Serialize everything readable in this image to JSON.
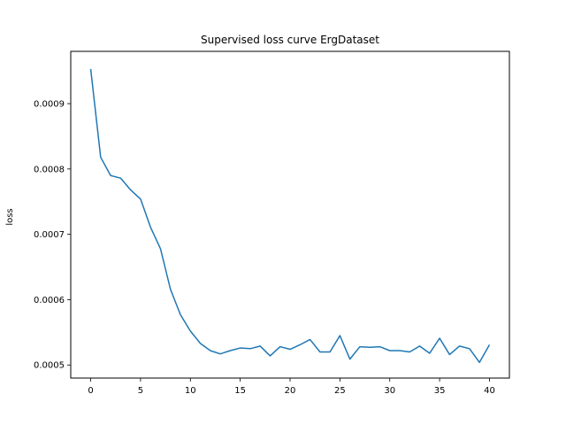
{
  "chart_data": {
    "type": "line",
    "title": "Supervised loss curve ErgDataset",
    "xlabel": "",
    "ylabel": "loss",
    "xlim": [
      -2,
      42
    ],
    "ylim": [
      0.00048,
      0.00098
    ],
    "xticks": [
      0,
      5,
      10,
      15,
      20,
      25,
      30,
      35,
      40
    ],
    "xtick_labels": [
      "0",
      "5",
      "10",
      "15",
      "20",
      "25",
      "30",
      "35",
      "40"
    ],
    "yticks": [
      0.0005,
      0.0006,
      0.0007,
      0.0008,
      0.0009
    ],
    "ytick_labels": [
      "0.0005",
      "0.0006",
      "0.0007",
      "0.0008",
      "0.0009"
    ],
    "grid": false,
    "colors": {
      "line": "#1f77b4"
    },
    "series": [
      {
        "x": [
          0,
          1,
          2,
          3,
          4,
          5,
          6,
          7,
          8,
          9,
          10,
          11,
          12,
          13,
          14,
          15,
          16,
          17,
          18,
          19,
          20,
          21,
          22,
          23,
          24,
          25,
          26,
          27,
          28,
          29,
          30,
          31,
          32,
          33,
          34,
          35,
          36,
          37,
          38,
          39,
          40
        ],
        "values": [
          0.000953,
          0.000818,
          0.00079,
          0.000786,
          0.000768,
          0.000754,
          0.000711,
          0.000678,
          0.000616,
          0.000577,
          0.000552,
          0.000533,
          0.000522,
          0.000517,
          0.000522,
          0.000526,
          0.000525,
          0.000529,
          0.000514,
          0.000528,
          0.000524,
          0.000531,
          0.000539,
          0.00052,
          0.00052,
          0.000545,
          0.000509,
          0.000528,
          0.000527,
          0.000528,
          0.000522,
          0.000522,
          0.00052,
          0.000529,
          0.000518,
          0.000541,
          0.000516,
          0.000529,
          0.000525,
          0.000504,
          0.000531
        ]
      }
    ]
  }
}
